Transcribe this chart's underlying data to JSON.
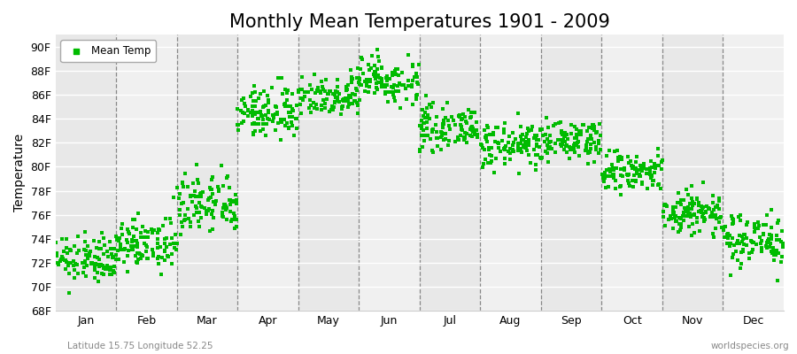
{
  "title": "Monthly Mean Temperatures 1901 - 2009",
  "ylabel": "Temperature",
  "background_color": "#ffffff",
  "plot_bg_color_odd": "#e8e8e8",
  "plot_bg_color_even": "#f0f0f0",
  "dot_color": "#00bb00",
  "dot_size": 5,
  "ylim": [
    68,
    91
  ],
  "yticks": [
    68,
    70,
    72,
    74,
    76,
    78,
    80,
    82,
    84,
    86,
    88,
    90
  ],
  "ytick_labels": [
    "68F",
    "70F",
    "72F",
    "74F",
    "76F",
    "78F",
    "80F",
    "82F",
    "84F",
    "86F",
    "88F",
    "90F"
  ],
  "months": [
    "Jan",
    "Feb",
    "Mar",
    "Apr",
    "May",
    "Jun",
    "Jul",
    "Aug",
    "Sep",
    "Oct",
    "Nov",
    "Dec"
  ],
  "month_means": [
    72.2,
    73.5,
    76.8,
    84.5,
    86.0,
    87.3,
    83.2,
    81.8,
    82.2,
    79.5,
    76.2,
    74.0
  ],
  "month_stds": [
    0.9,
    1.0,
    1.3,
    1.1,
    0.9,
    1.0,
    0.8,
    0.9,
    0.8,
    0.9,
    1.0,
    1.1
  ],
  "n_years": 109,
  "subtitle_left": "Latitude 15.75 Longitude 52.25",
  "subtitle_right": "worldspecies.org",
  "legend_label": "Mean Temp",
  "title_fontsize": 15,
  "axis_label_fontsize": 10,
  "tick_fontsize": 9
}
